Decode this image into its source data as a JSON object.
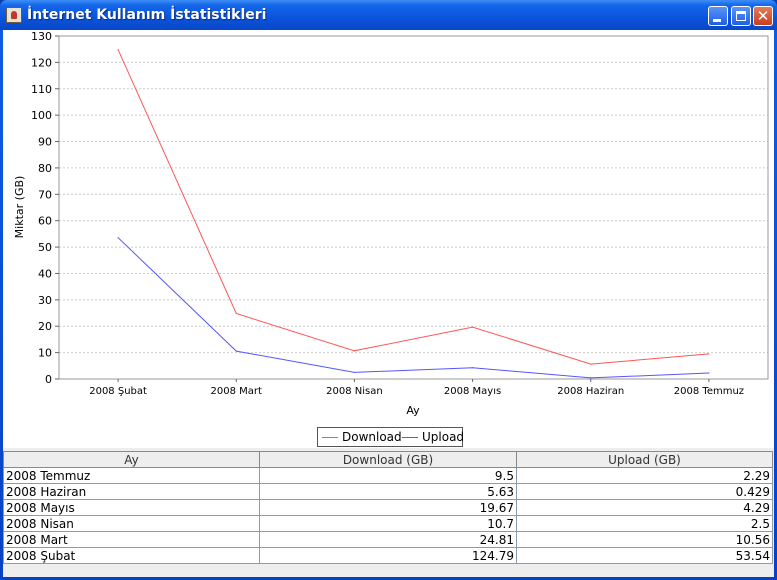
{
  "window": {
    "title": "İnternet Kullanım İstatistikleri",
    "icon": "java-coffee-icon",
    "controls": [
      "minimize-icon",
      "maximize-icon",
      "close-icon"
    ]
  },
  "chart_data": {
    "type": "line",
    "title": "",
    "xlabel": "Ay",
    "ylabel": "Miktar (GB)",
    "categories": [
      "2008 Şubat",
      "2008 Mart",
      "2008 Nisan",
      "2008 Mayıs",
      "2008 Haziran",
      "2008 Temmuz"
    ],
    "series": [
      {
        "name": "Download",
        "values": [
          124.79,
          24.81,
          10.7,
          19.67,
          5.63,
          9.5
        ],
        "color": "#ff5555"
      },
      {
        "name": "Upload",
        "values": [
          53.54,
          10.56,
          2.5,
          4.29,
          0.429,
          2.29
        ],
        "color": "#5555ff"
      }
    ],
    "ylim": [
      0,
      130
    ],
    "yticks": [
      0,
      10,
      20,
      30,
      40,
      50,
      60,
      70,
      80,
      90,
      100,
      110,
      120,
      130
    ],
    "grid": true,
    "legend": "bottom-center"
  },
  "table": {
    "columns": [
      "Ay",
      "Download (GB)",
      "Upload (GB)"
    ],
    "rows": [
      [
        "2008 Temmuz",
        "9.5",
        "2.29"
      ],
      [
        "2008 Haziran",
        "5.63",
        "0.429"
      ],
      [
        "2008 Mayıs",
        "19.67",
        "4.29"
      ],
      [
        "2008 Nisan",
        "10.7",
        "2.5"
      ],
      [
        "2008 Mart",
        "24.81",
        "10.56"
      ],
      [
        "2008 Şubat",
        "124.79",
        "53.54"
      ]
    ]
  }
}
